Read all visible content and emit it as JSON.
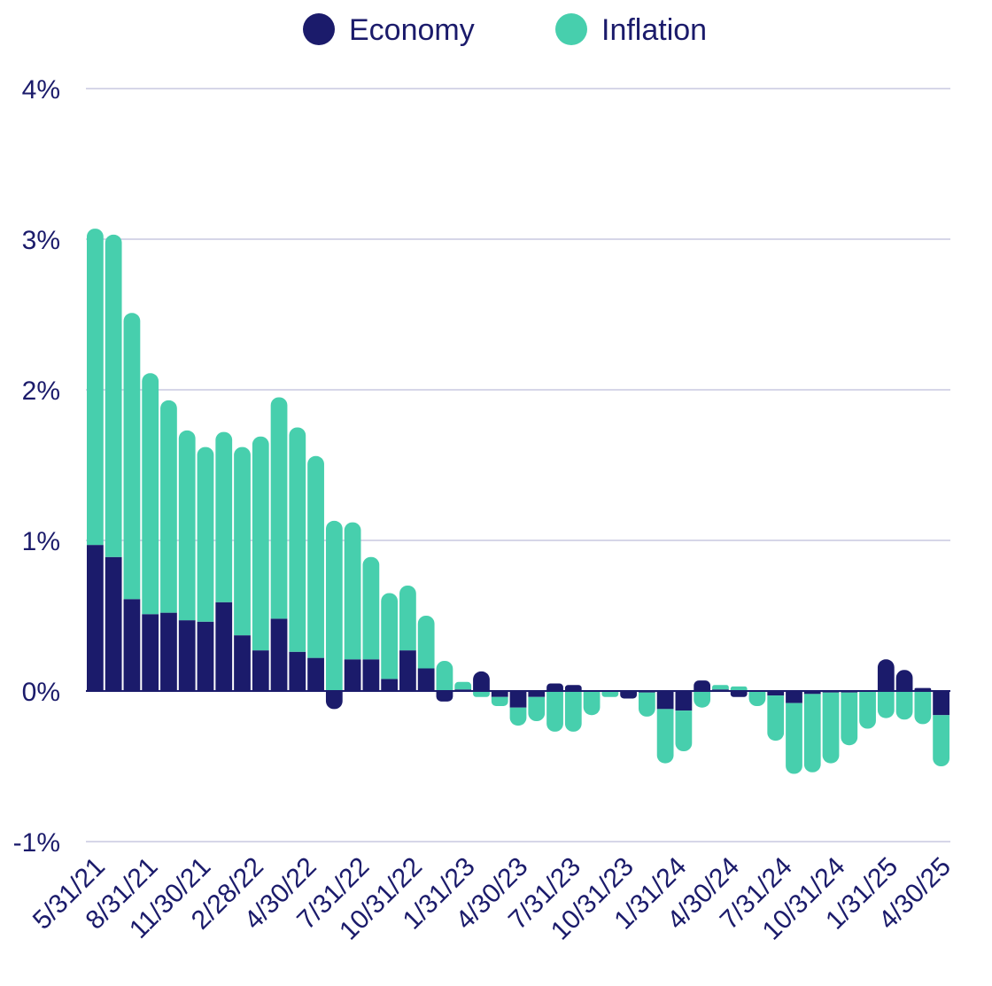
{
  "chart_data": {
    "type": "bar",
    "stacked": true,
    "legend": {
      "placement": "top-center"
    },
    "colors": {
      "Economy": "#1b1b6b",
      "Inflation": "#47cfad"
    },
    "y_ticks": [
      "4%",
      "3%",
      "2%",
      "1%",
      "0%",
      "-1%"
    ],
    "y_tick_values": [
      4,
      3,
      2,
      1,
      0,
      -1
    ],
    "ylim": [
      -1,
      4
    ],
    "x_tick_labels": [
      "5/31/21",
      "8/31/21",
      "11/30/21",
      "2/28/22",
      "4/30/22",
      "7/31/22",
      "10/31/22",
      "1/31/23",
      "4/30/23",
      "7/31/23",
      "10/31/23",
      "1/31/24",
      "4/30/24",
      "7/31/24",
      "10/31/24",
      "1/31/25",
      "4/30/25"
    ],
    "grid": true,
    "series": [
      {
        "name": "Economy",
        "values": [
          0.97,
          0.89,
          0.61,
          0.51,
          0.52,
          0.47,
          0.46,
          0.59,
          0.37,
          0.27,
          0.48,
          0.26,
          0.22,
          -0.12,
          0.21,
          0.21,
          0.08,
          0.27,
          0.15,
          -0.07,
          0.01,
          0.13,
          -0.04,
          -0.11,
          -0.04,
          0.05,
          0.04,
          0.0,
          0.0,
          -0.05,
          -0.01,
          -0.12,
          -0.13,
          0.07,
          0.01,
          -0.04,
          0.0,
          -0.03,
          -0.08,
          -0.02,
          -0.01,
          -0.01,
          0.0,
          0.21,
          0.14,
          0.02,
          -0.16
        ]
      },
      {
        "name": "Inflation",
        "values": [
          2.1,
          2.14,
          1.9,
          1.6,
          1.41,
          1.26,
          1.16,
          1.13,
          1.25,
          1.42,
          1.47,
          1.49,
          1.34,
          1.13,
          0.91,
          0.68,
          0.57,
          0.43,
          0.35,
          0.2,
          0.05,
          -0.04,
          -0.06,
          -0.12,
          -0.16,
          -0.27,
          -0.27,
          -0.16,
          -0.04,
          0.0,
          -0.16,
          -0.36,
          -0.27,
          -0.11,
          0.03,
          0.03,
          -0.1,
          -0.3,
          -0.47,
          -0.52,
          -0.47,
          -0.35,
          -0.25,
          -0.18,
          -0.19,
          -0.22,
          -0.34
        ]
      }
    ]
  }
}
